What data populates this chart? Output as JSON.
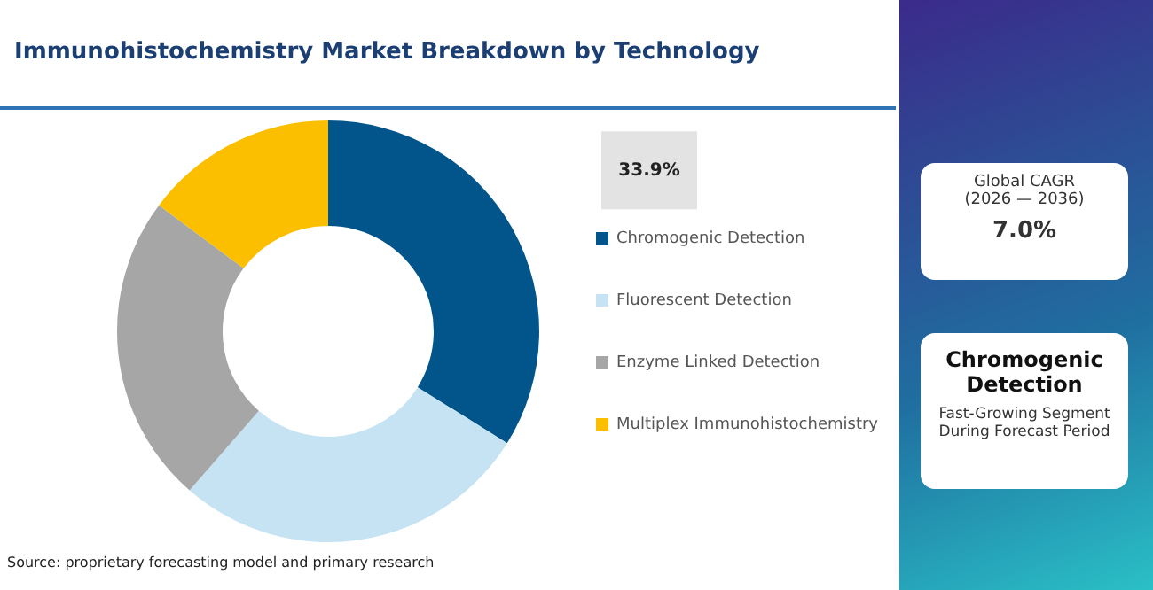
{
  "chart_data": {
    "type": "donut",
    "title": "Immunohistochemistry Market Breakdown by Technology",
    "categories": [
      "Chromogenic Detection",
      "Fluorescent Detection",
      "Enzyme Linked Detection",
      "Multiplex Immunohistochemistry"
    ],
    "values": [
      33.9,
      27.5,
      23.8,
      14.8
    ],
    "colors": [
      "#02558b",
      "#c5e3f2",
      "#a6a6a6",
      "#fbbf00"
    ],
    "value_labels": [
      "33.9%",
      null,
      null,
      null
    ],
    "legend": "right",
    "annotations": [
      "Global CAGR",
      "(2026 — 2036)",
      "7.0%",
      "Chromogenic Detection",
      "Fast-Growing Segment During Forecast Period",
      "Source: proprietary forecasting model and primary research"
    ]
  }
}
